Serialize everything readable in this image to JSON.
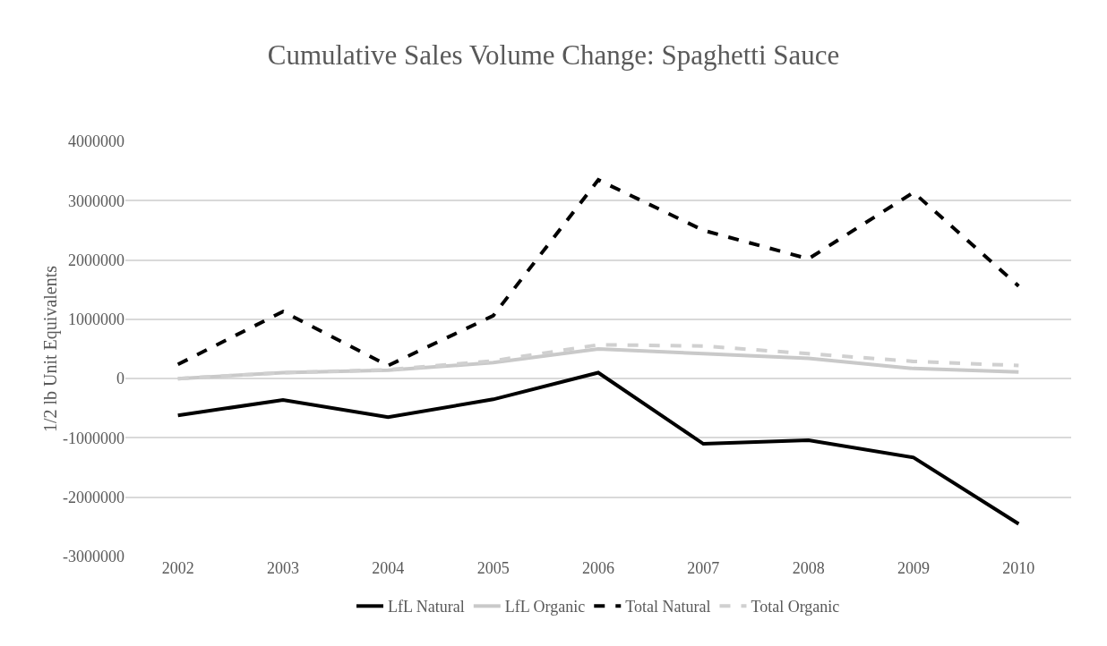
{
  "chart_data": {
    "type": "line",
    "title": "Cumulative Sales Volume Change: Spaghetti Sauce",
    "ylabel": "1/2 lb Unit Equivalents",
    "categories": [
      "2002",
      "2003",
      "2004",
      "2005",
      "2006",
      "2007",
      "2008",
      "2009",
      "2010"
    ],
    "series": [
      {
        "name": "LfL Natural",
        "color": "#000000",
        "line_style": "solid",
        "values": [
          -620000,
          -360000,
          -650000,
          -350000,
          100000,
          -1100000,
          -1040000,
          -1330000,
          -2450000
        ]
      },
      {
        "name": "LfL Organic",
        "color": "#c9c9c9",
        "line_style": "solid",
        "values": [
          0,
          100000,
          140000,
          270000,
          500000,
          420000,
          340000,
          170000,
          110000
        ]
      },
      {
        "name": "Total Natural",
        "color": "#000000",
        "line_style": "dashed",
        "values": [
          240000,
          1130000,
          220000,
          1060000,
          3350000,
          2500000,
          2020000,
          3140000,
          1560000
        ]
      },
      {
        "name": "Total Organic",
        "color": "#d0d0d0",
        "line_style": "dashed",
        "values": [
          0,
          100000,
          150000,
          300000,
          570000,
          550000,
          420000,
          290000,
          220000
        ]
      }
    ],
    "ylim": [
      -3000000,
      4000000
    ],
    "yticks": [
      -3000000,
      -2000000,
      -1000000,
      0,
      1000000,
      2000000,
      3000000,
      4000000
    ],
    "grid": "y",
    "legend": "bottom",
    "marker": "none"
  }
}
